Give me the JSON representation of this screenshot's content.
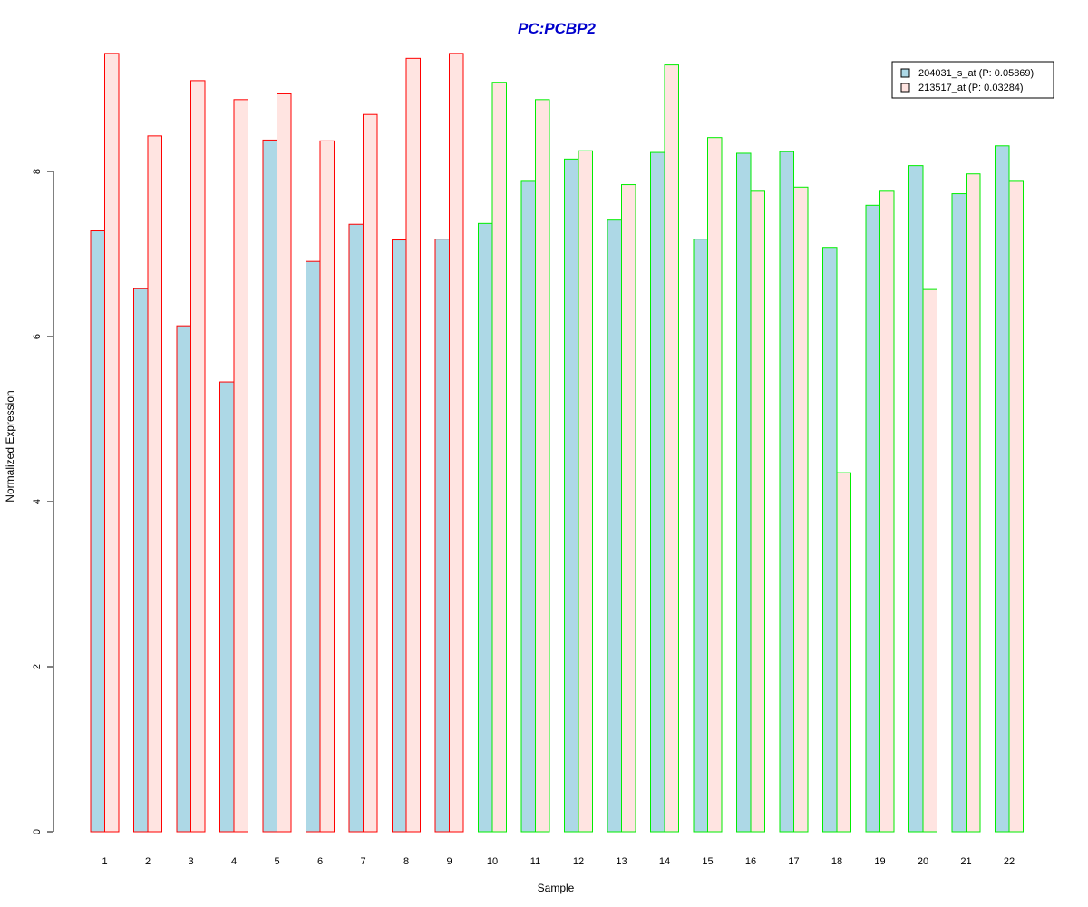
{
  "chart_data": {
    "type": "bar",
    "title": "PC:PCBP2",
    "xlabel": "Sample",
    "ylabel": "Normalized Expression",
    "categories": [
      "1",
      "2",
      "3",
      "4",
      "5",
      "6",
      "7",
      "8",
      "9",
      "10",
      "11",
      "12",
      "13",
      "14",
      "15",
      "16",
      "17",
      "18",
      "19",
      "20",
      "21",
      "22"
    ],
    "series": [
      {
        "name": "204031_s_at (P: 0.05869)",
        "color": "#add8e6",
        "values": [
          7.28,
          6.58,
          6.13,
          5.45,
          8.38,
          6.91,
          7.36,
          7.17,
          7.18,
          7.37,
          7.88,
          8.15,
          7.41,
          8.23,
          7.18,
          8.22,
          8.24,
          7.08,
          7.59,
          8.07,
          7.73,
          8.31
        ]
      },
      {
        "name": "213517_at (P: 0.03284)",
        "color": "#ffe4e1",
        "values": [
          9.43,
          8.43,
          9.1,
          8.87,
          8.94,
          8.37,
          8.69,
          9.37,
          9.43,
          9.08,
          8.87,
          8.25,
          7.84,
          9.29,
          8.41,
          7.76,
          7.81,
          4.35,
          7.76,
          6.57,
          7.97,
          7.88
        ]
      }
    ],
    "group_border_colors": [
      "#ff0000",
      "#ff0000",
      "#ff0000",
      "#ff0000",
      "#ff0000",
      "#ff0000",
      "#ff0000",
      "#ff0000",
      "#ff0000",
      "#00ee00",
      "#00ee00",
      "#00ee00",
      "#00ee00",
      "#00ee00",
      "#00ee00",
      "#00ee00",
      "#00ee00",
      "#00ee00",
      "#00ee00",
      "#00ee00",
      "#00ee00",
      "#00ee00"
    ],
    "y_ticks": [
      "0",
      "2",
      "4",
      "6",
      "8"
    ],
    "ylim": [
      0,
      10
    ],
    "grid": false,
    "legend_position": "top-right",
    "title_color": "#0000cc"
  }
}
